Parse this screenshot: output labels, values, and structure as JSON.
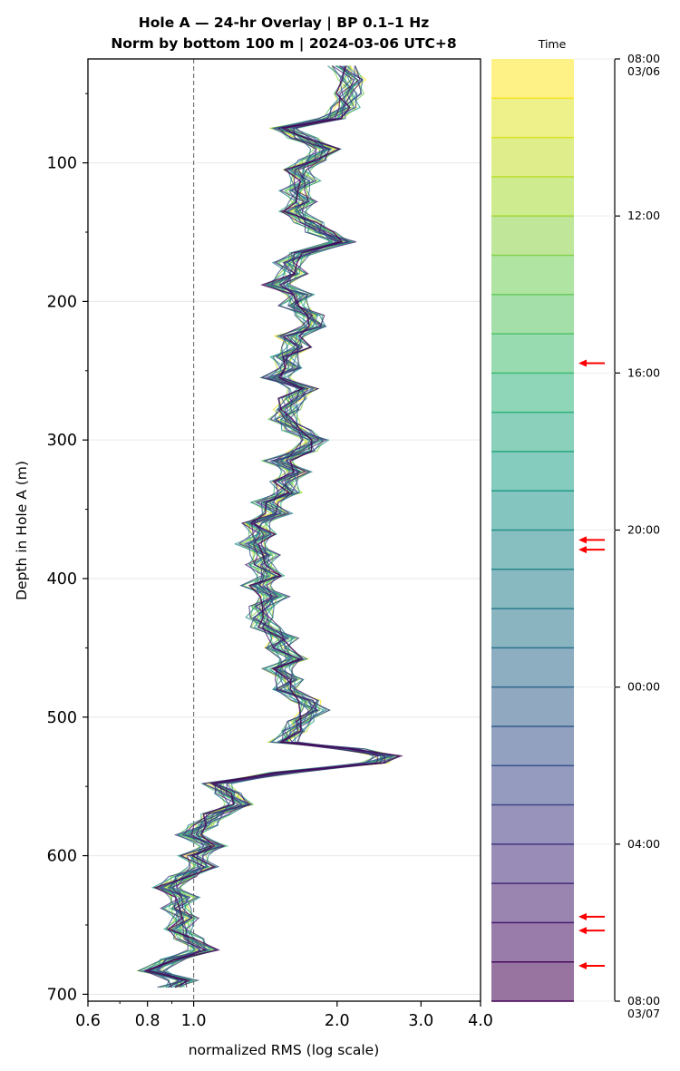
{
  "chart_data": {
    "type": "line",
    "title_line1": "Hole A — 24-hr Overlay  |  BP 0.1–1 Hz",
    "title_line2": "Norm by bottom 100 m  |  2024-03-06 UTC+8",
    "xlabel": "normalized RMS  (log scale)",
    "ylabel": "Depth in Hole A (m)",
    "x_scale": "log",
    "xlim": [
      0.6,
      4.0
    ],
    "ylim": [
      705,
      25
    ],
    "x_tick_values": [
      0.6,
      0.8,
      1.0,
      2.0,
      3.0,
      4.0
    ],
    "x_tick_labels": [
      "0.6",
      "0.8",
      "1.0",
      "2.0",
      "3.0",
      "4.0"
    ],
    "y_tick_values": [
      100,
      200,
      300,
      400,
      500,
      600,
      700
    ],
    "y_tick_labels": [
      "100",
      "200",
      "300",
      "400",
      "500",
      "600",
      "700"
    ],
    "reference_line_x": 1.0,
    "grid": "horizontal",
    "colormap": "viridis",
    "n_series": 24,
    "profile_depth": [
      30,
      40,
      50,
      60,
      68,
      75,
      82,
      90,
      98,
      105,
      113,
      120,
      128,
      135,
      143,
      150,
      157,
      165,
      172,
      180,
      188,
      195,
      203,
      210,
      218,
      225,
      233,
      240,
      248,
      255,
      263,
      270,
      278,
      285,
      293,
      300,
      308,
      315,
      323,
      330,
      338,
      345,
      353,
      360,
      368,
      375,
      383,
      390,
      398,
      405,
      413,
      420,
      428,
      435,
      443,
      450,
      458,
      465,
      473,
      480,
      488,
      495,
      503,
      510,
      518,
      523,
      528,
      533,
      540,
      548,
      555,
      563,
      570,
      578,
      585,
      593,
      600,
      608,
      615,
      623,
      630,
      638,
      645,
      653,
      660,
      668,
      675,
      683,
      690,
      695
    ],
    "profile_rms": [
      2.05,
      2.15,
      2.12,
      2.08,
      1.95,
      1.55,
      1.7,
      1.9,
      1.78,
      1.65,
      1.72,
      1.63,
      1.7,
      1.62,
      1.75,
      1.85,
      2.05,
      1.7,
      1.58,
      1.62,
      1.5,
      1.68,
      1.62,
      1.75,
      1.8,
      1.6,
      1.65,
      1.55,
      1.6,
      1.48,
      1.7,
      1.62,
      1.58,
      1.55,
      1.65,
      1.8,
      1.7,
      1.5,
      1.65,
      1.55,
      1.58,
      1.42,
      1.5,
      1.35,
      1.4,
      1.32,
      1.42,
      1.38,
      1.45,
      1.35,
      1.48,
      1.4,
      1.38,
      1.42,
      1.55,
      1.5,
      1.62,
      1.5,
      1.6,
      1.55,
      1.72,
      1.8,
      1.68,
      1.62,
      1.55,
      2.15,
      2.55,
      2.4,
      1.55,
      1.12,
      1.18,
      1.25,
      1.12,
      1.05,
      0.98,
      1.1,
      1.0,
      1.05,
      0.95,
      0.88,
      0.96,
      0.92,
      0.96,
      0.93,
      0.98,
      1.05,
      0.9,
      0.82,
      0.95,
      0.9
    ],
    "colorbar": {
      "label": "Time",
      "n_bins": 24,
      "tick_labels": [
        {
          "hour": 0,
          "text": "08:00",
          "sub": "03/06"
        },
        {
          "hour": 4,
          "text": "12:00",
          "sub": ""
        },
        {
          "hour": 8,
          "text": "16:00",
          "sub": ""
        },
        {
          "hour": 12,
          "text": "20:00",
          "sub": ""
        },
        {
          "hour": 16,
          "text": "00:00",
          "sub": ""
        },
        {
          "hour": 20,
          "text": "04:00",
          "sub": ""
        },
        {
          "hour": 24,
          "text": "08:00",
          "sub": "03/07"
        }
      ],
      "arrow_hours": [
        7.75,
        12.25,
        12.5,
        21.85,
        22.2,
        23.1
      ],
      "arrow_color": "#ff0000"
    }
  }
}
